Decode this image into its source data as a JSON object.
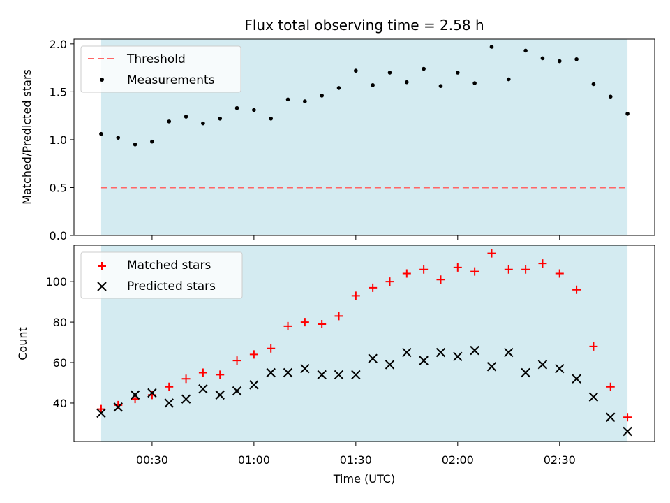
{
  "chart_data": [
    {
      "type": "scatter",
      "title": "Flux total observing time = 2.58 h",
      "xlabel": "",
      "ylabel": "Matched/Predicted stars",
      "ylim": [
        0,
        2.05
      ],
      "yticks": [
        "0.0",
        "0.5",
        "1.0",
        "1.5",
        "2.0"
      ],
      "ytick_values": [
        0,
        0.5,
        1.0,
        1.5,
        2.0
      ],
      "legend_position": "upper-left",
      "threshold": {
        "name": "Threshold",
        "value": 0.5,
        "color": "#ff6666",
        "style": "dashed"
      },
      "series": [
        {
          "name": "Measurements",
          "marker": "dot",
          "color": "#000000",
          "x": [
            "00:15",
            "00:20",
            "00:25",
            "00:30",
            "00:35",
            "00:40",
            "00:45",
            "00:50",
            "00:55",
            "01:00",
            "01:05",
            "01:10",
            "01:15",
            "01:20",
            "01:25",
            "01:30",
            "01:35",
            "01:40",
            "01:45",
            "01:50",
            "01:55",
            "02:00",
            "02:05",
            "02:10",
            "02:15",
            "02:20",
            "02:25",
            "02:30",
            "02:35",
            "02:40",
            "02:45",
            "02:50"
          ],
          "y": [
            1.06,
            1.02,
            0.95,
            0.98,
            1.19,
            1.24,
            1.17,
            1.22,
            1.33,
            1.31,
            1.22,
            1.42,
            1.4,
            1.46,
            1.54,
            1.72,
            1.57,
            1.7,
            1.6,
            1.74,
            1.56,
            1.7,
            1.59,
            1.97,
            1.63,
            1.93,
            1.85,
            1.82,
            1.84,
            1.58,
            1.45,
            1.27
          ]
        }
      ],
      "shaded_region": {
        "x_start": "00:15",
        "x_end": "02:50",
        "color": "#d4ebf1"
      }
    },
    {
      "type": "scatter",
      "title": "",
      "xlabel": "Time (UTC)",
      "ylabel": "Count",
      "xlim": [
        "00:07",
        "02:58"
      ],
      "xticks": [
        "00:30",
        "01:00",
        "01:30",
        "02:00",
        "02:30"
      ],
      "ylim": [
        21,
        118
      ],
      "yticks": [
        "40",
        "60",
        "80",
        "100"
      ],
      "ytick_values": [
        40,
        60,
        80,
        100
      ],
      "legend_position": "upper-left",
      "series": [
        {
          "name": "Matched stars",
          "marker": "plus",
          "color": "#ff0000",
          "x": [
            "00:15",
            "00:20",
            "00:25",
            "00:30",
            "00:35",
            "00:40",
            "00:45",
            "00:50",
            "00:55",
            "01:00",
            "01:05",
            "01:10",
            "01:15",
            "01:20",
            "01:25",
            "01:30",
            "01:35",
            "01:40",
            "01:45",
            "01:50",
            "01:55",
            "02:00",
            "02:05",
            "02:10",
            "02:15",
            "02:20",
            "02:25",
            "02:30",
            "02:35",
            "02:40",
            "02:45",
            "02:50"
          ],
          "y": [
            37,
            39,
            42,
            44,
            48,
            52,
            55,
            54,
            61,
            64,
            67,
            78,
            80,
            79,
            83,
            93,
            97,
            100,
            104,
            106,
            101,
            107,
            105,
            114,
            106,
            106,
            109,
            104,
            96,
            68,
            48,
            33
          ]
        },
        {
          "name": "Predicted stars",
          "marker": "x",
          "color": "#000000",
          "x": [
            "00:15",
            "00:20",
            "00:25",
            "00:30",
            "00:35",
            "00:40",
            "00:45",
            "00:50",
            "00:55",
            "01:00",
            "01:05",
            "01:10",
            "01:15",
            "01:20",
            "01:25",
            "01:30",
            "01:35",
            "01:40",
            "01:45",
            "01:50",
            "01:55",
            "02:00",
            "02:05",
            "02:10",
            "02:15",
            "02:20",
            "02:25",
            "02:30",
            "02:35",
            "02:40",
            "02:45",
            "02:50"
          ],
          "y": [
            35,
            38,
            44,
            45,
            40,
            42,
            47,
            44,
            46,
            49,
            55,
            55,
            57,
            54,
            54,
            54,
            62,
            59,
            65,
            61,
            65,
            63,
            66,
            58,
            65,
            55,
            59,
            57,
            52,
            43,
            33,
            26
          ]
        }
      ],
      "shaded_region": {
        "x_start": "00:15",
        "x_end": "02:50",
        "color": "#d4ebf1"
      }
    }
  ]
}
